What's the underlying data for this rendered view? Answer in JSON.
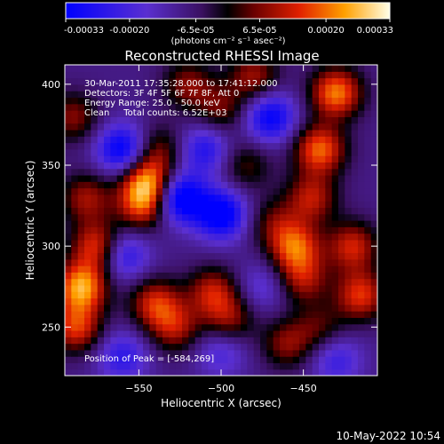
{
  "chart_data": {
    "type": "heatmap",
    "title": "Reconstructed RHESSI Image",
    "xlabel": "Heliocentric X (arcsec)",
    "ylabel": "Heliocentric Y (arcsec)",
    "xlim": [
      -595,
      -405
    ],
    "ylim": [
      220,
      412
    ],
    "x_ticks": [
      -550,
      -500,
      -450
    ],
    "y_ticks": [
      250,
      300,
      350,
      400
    ],
    "colorbar": {
      "min": -0.00033,
      "max": 0.00033,
      "tick_values": [
        -0.00033,
        -0.0002,
        -6.5e-05,
        6.5e-05,
        0.0002,
        0.00033
      ],
      "tick_labels": [
        "-0.00033",
        "-0.00020",
        "-6.5e-05",
        "6.5e-05",
        "0.00020",
        "0.00033"
      ],
      "unit_label": "(photons cm⁻² s⁻¹ asec⁻²)"
    },
    "annotations": [
      "30-Mar-2011 17:35:28.000 to 17:41:12.000",
      "Detectors: 3F 4F 5F 6F 7F 8F, Att 0",
      "Energy Range: 25.0 - 50.0 keV",
      "Clean     Total counts: 6.52E+03",
      "Position of Peak = [-584,269]"
    ],
    "peak_position": [
      -584,
      269
    ],
    "sources": [
      {
        "x": -585,
        "y": 275,
        "amp": 0.00033
      },
      {
        "x": -575,
        "y": 300,
        "amp": 0.00026
      },
      {
        "x": -588,
        "y": 250,
        "amp": 0.00024
      },
      {
        "x": -582,
        "y": 330,
        "amp": 0.00018
      },
      {
        "x": -590,
        "y": 380,
        "amp": 0.00016
      },
      {
        "x": -545,
        "y": 340,
        "amp": 0.0003
      },
      {
        "x": -548,
        "y": 325,
        "amp": 0.00022
      },
      {
        "x": -538,
        "y": 360,
        "amp": 0.00014
      },
      {
        "x": -540,
        "y": 265,
        "amp": 0.00022
      },
      {
        "x": -528,
        "y": 250,
        "amp": 0.00018
      },
      {
        "x": -505,
        "y": 272,
        "amp": 0.0002
      },
      {
        "x": -495,
        "y": 255,
        "amp": 0.00016
      },
      {
        "x": -520,
        "y": 400,
        "amp": 0.00016
      },
      {
        "x": -500,
        "y": 385,
        "amp": 0.00014
      },
      {
        "x": -480,
        "y": 405,
        "amp": 0.00018
      },
      {
        "x": -485,
        "y": 350,
        "amp": 0.00012
      },
      {
        "x": -460,
        "y": 240,
        "amp": 0.00016
      },
      {
        "x": -468,
        "y": 315,
        "amp": 0.00012
      },
      {
        "x": -440,
        "y": 360,
        "amp": 0.00028
      },
      {
        "x": -430,
        "y": 395,
        "amp": 0.0003
      },
      {
        "x": -445,
        "y": 330,
        "amp": 0.0002
      },
      {
        "x": -455,
        "y": 300,
        "amp": 0.00026
      },
      {
        "x": -450,
        "y": 280,
        "amp": 0.00018
      },
      {
        "x": -420,
        "y": 300,
        "amp": 0.00022
      },
      {
        "x": -415,
        "y": 270,
        "amp": 0.00024
      },
      {
        "x": -440,
        "y": 250,
        "amp": 0.00012
      },
      {
        "x": -525,
        "y": 330,
        "amp": -0.0003
      },
      {
        "x": -560,
        "y": 360,
        "amp": -0.00026
      },
      {
        "x": -500,
        "y": 320,
        "amp": -0.00028
      },
      {
        "x": -470,
        "y": 380,
        "amp": -0.00024
      },
      {
        "x": -560,
        "y": 295,
        "amp": -0.0002
      },
      {
        "x": -510,
        "y": 360,
        "amp": -0.00018
      },
      {
        "x": -430,
        "y": 230,
        "amp": -0.00014
      },
      {
        "x": -560,
        "y": 232,
        "amp": -0.00016
      },
      {
        "x": -500,
        "y": 235,
        "amp": -0.00012
      },
      {
        "x": -475,
        "y": 275,
        "amp": -0.0001
      }
    ]
  },
  "footer": {
    "timestamp": "10-May-2022 10:54"
  }
}
